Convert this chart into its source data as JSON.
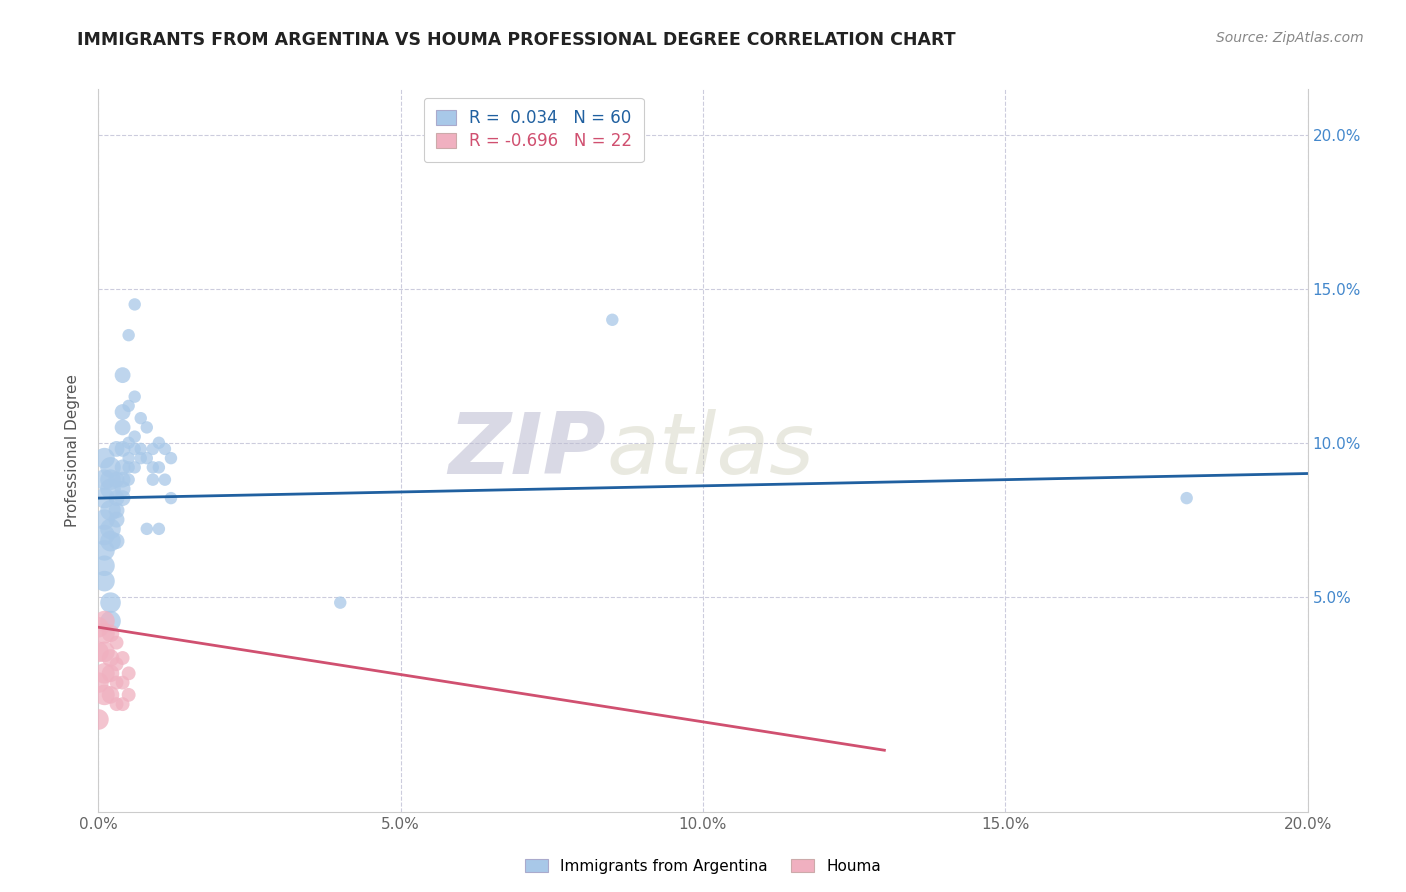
{
  "title": "IMMIGRANTS FROM ARGENTINA VS HOUMA PROFESSIONAL DEGREE CORRELATION CHART",
  "source": "Source: ZipAtlas.com",
  "ylabel": "Professional Degree",
  "xlim": [
    0.0,
    0.2
  ],
  "ylim": [
    -0.02,
    0.215
  ],
  "x_tick_vals": [
    0.0,
    0.05,
    0.1,
    0.15,
    0.2
  ],
  "x_tick_labels": [
    "0.0%",
    "5.0%",
    "10.0%",
    "15.0%",
    "20.0%"
  ],
  "y_tick_vals": [
    0.05,
    0.1,
    0.15,
    0.2
  ],
  "y_tick_labels": [
    "5.0%",
    "10.0%",
    "15.0%",
    "20.0%"
  ],
  "watermark_zip": "ZIP",
  "watermark_atlas": "atlas",
  "legend_label_blue": "R =  0.034   N = 60",
  "legend_label_pink": "R = -0.696   N = 22",
  "blue_scatter": [
    [
      0.001,
      0.095
    ],
    [
      0.001,
      0.082
    ],
    [
      0.001,
      0.088
    ],
    [
      0.001,
      0.075
    ],
    [
      0.001,
      0.07
    ],
    [
      0.001,
      0.065
    ],
    [
      0.001,
      0.06
    ],
    [
      0.001,
      0.055
    ],
    [
      0.002,
      0.092
    ],
    [
      0.002,
      0.085
    ],
    [
      0.002,
      0.078
    ],
    [
      0.002,
      0.088
    ],
    [
      0.002,
      0.072
    ],
    [
      0.002,
      0.068
    ],
    [
      0.002,
      0.048
    ],
    [
      0.002,
      0.042
    ],
    [
      0.003,
      0.098
    ],
    [
      0.003,
      0.088
    ],
    [
      0.003,
      0.082
    ],
    [
      0.003,
      0.078
    ],
    [
      0.003,
      0.075
    ],
    [
      0.003,
      0.068
    ],
    [
      0.004,
      0.122
    ],
    [
      0.004,
      0.11
    ],
    [
      0.004,
      0.105
    ],
    [
      0.004,
      0.098
    ],
    [
      0.004,
      0.092
    ],
    [
      0.004,
      0.088
    ],
    [
      0.004,
      0.085
    ],
    [
      0.004,
      0.082
    ],
    [
      0.005,
      0.135
    ],
    [
      0.005,
      0.112
    ],
    [
      0.005,
      0.1
    ],
    [
      0.005,
      0.095
    ],
    [
      0.005,
      0.092
    ],
    [
      0.005,
      0.088
    ],
    [
      0.006,
      0.145
    ],
    [
      0.006,
      0.115
    ],
    [
      0.006,
      0.102
    ],
    [
      0.006,
      0.098
    ],
    [
      0.006,
      0.092
    ],
    [
      0.007,
      0.108
    ],
    [
      0.007,
      0.098
    ],
    [
      0.007,
      0.095
    ],
    [
      0.008,
      0.105
    ],
    [
      0.008,
      0.095
    ],
    [
      0.008,
      0.072
    ],
    [
      0.009,
      0.098
    ],
    [
      0.009,
      0.092
    ],
    [
      0.009,
      0.088
    ],
    [
      0.01,
      0.1
    ],
    [
      0.01,
      0.092
    ],
    [
      0.01,
      0.072
    ],
    [
      0.011,
      0.098
    ],
    [
      0.011,
      0.088
    ],
    [
      0.012,
      0.095
    ],
    [
      0.012,
      0.082
    ],
    [
      0.04,
      0.048
    ],
    [
      0.085,
      0.14
    ],
    [
      0.18,
      0.082
    ]
  ],
  "pink_scatter": [
    [
      0.0,
      0.04
    ],
    [
      0.0,
      0.032
    ],
    [
      0.0,
      0.022
    ],
    [
      0.0,
      0.01
    ],
    [
      0.001,
      0.042
    ],
    [
      0.001,
      0.038
    ],
    [
      0.001,
      0.032
    ],
    [
      0.001,
      0.025
    ],
    [
      0.001,
      0.018
    ],
    [
      0.002,
      0.038
    ],
    [
      0.002,
      0.03
    ],
    [
      0.002,
      0.025
    ],
    [
      0.002,
      0.018
    ],
    [
      0.003,
      0.035
    ],
    [
      0.003,
      0.028
    ],
    [
      0.003,
      0.022
    ],
    [
      0.003,
      0.015
    ],
    [
      0.004,
      0.03
    ],
    [
      0.004,
      0.022
    ],
    [
      0.004,
      0.015
    ],
    [
      0.005,
      0.025
    ],
    [
      0.005,
      0.018
    ]
  ],
  "blue_line_x": [
    0.0,
    0.2
  ],
  "blue_line_y": [
    0.082,
    0.09
  ],
  "pink_line_x": [
    0.0,
    0.13
  ],
  "pink_line_y": [
    0.04,
    0.0
  ],
  "blue_color": "#A8C8E8",
  "pink_color": "#F0B0C0",
  "blue_line_color": "#2060A0",
  "pink_line_color": "#D05070",
  "bg_color": "#FFFFFF",
  "grid_color": "#CCCCDD",
  "title_color": "#222222",
  "right_axis_color": "#4488CC"
}
